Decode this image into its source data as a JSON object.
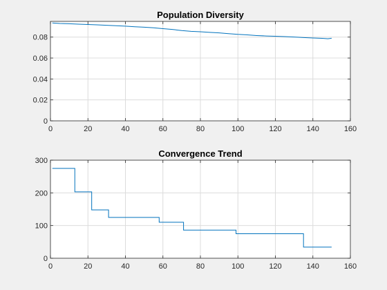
{
  "figure": {
    "background": "#f0f0f0",
    "axes_background": "#ffffff",
    "line_color": "#0072bd",
    "grid_color": "#dcdcdc"
  },
  "chart_data": [
    {
      "type": "line",
      "title": "Population Diversity",
      "xlabel": "",
      "ylabel": "",
      "xlim": [
        0,
        160
      ],
      "ylim": [
        0,
        0.095
      ],
      "grid": true,
      "xticks": [
        0,
        20,
        40,
        60,
        80,
        100,
        120,
        140,
        160
      ],
      "xtick_labels": [
        "0",
        "20",
        "40",
        "60",
        "80",
        "100",
        "120",
        "140",
        "160"
      ],
      "yticks": [
        0,
        0.02,
        0.04,
        0.06,
        0.08
      ],
      "ytick_labels": [
        "0",
        "0.02",
        "0.04",
        "0.06",
        "0.08"
      ],
      "series": [
        {
          "x": [
            1,
            5,
            10,
            15,
            20,
            25,
            30,
            35,
            40,
            45,
            50,
            55,
            60,
            65,
            70,
            75,
            80,
            85,
            90,
            95,
            100,
            105,
            110,
            115,
            120,
            125,
            130,
            135,
            140,
            145,
            148,
            150
          ],
          "y": [
            0.0935,
            0.093,
            0.0928,
            0.0924,
            0.092,
            0.0917,
            0.0913,
            0.0909,
            0.0905,
            0.0899,
            0.0895,
            0.0889,
            0.0881,
            0.0873,
            0.0863,
            0.0855,
            0.0851,
            0.0845,
            0.084,
            0.0833,
            0.0826,
            0.0821,
            0.0815,
            0.0811,
            0.0808,
            0.0805,
            0.0801,
            0.0796,
            0.0792,
            0.0788,
            0.0784,
            0.0789
          ]
        }
      ]
    },
    {
      "type": "line",
      "title": "Convergence Trend",
      "xlabel": "",
      "ylabel": "",
      "xlim": [
        0,
        160
      ],
      "ylim": [
        0,
        300
      ],
      "grid": true,
      "xticks": [
        0,
        20,
        40,
        60,
        80,
        100,
        120,
        140,
        160
      ],
      "xtick_labels": [
        "0",
        "20",
        "40",
        "60",
        "80",
        "100",
        "120",
        "140",
        "160"
      ],
      "yticks": [
        0,
        100,
        200,
        300
      ],
      "ytick_labels": [
        "0",
        "100",
        "200",
        "300"
      ],
      "series": [
        {
          "step": true,
          "x": [
            1,
            13,
            22,
            31,
            58,
            71,
            99,
            135,
            150
          ],
          "y": [
            275,
            203,
            148,
            125,
            110,
            86,
            75,
            34,
            34
          ]
        }
      ]
    }
  ]
}
